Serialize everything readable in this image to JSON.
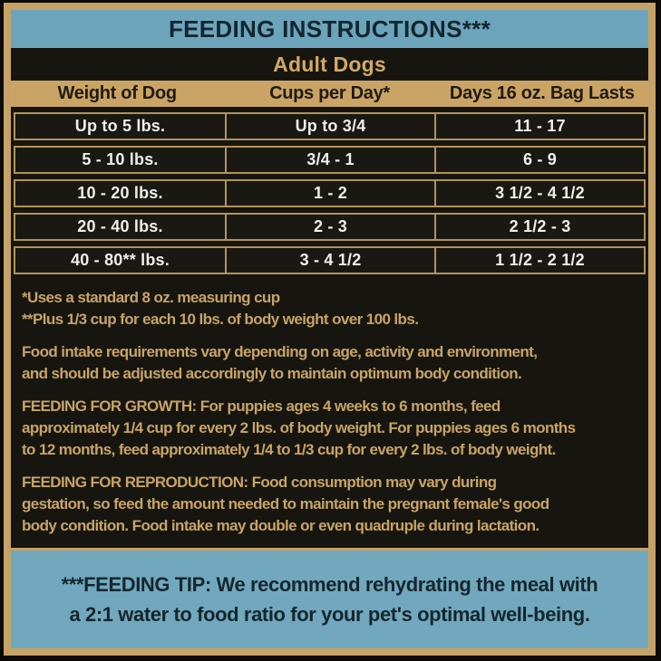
{
  "label": {
    "title": "FEEDING INSTRUCTIONS***",
    "section_header": "Adult Dogs",
    "table": {
      "columns": [
        "Weight of Dog",
        "Cups per Day*",
        "Days 16 oz. Bag Lasts"
      ],
      "rows": [
        {
          "weight": "Up to 5 lbs.",
          "cups": "Up to 3/4",
          "days": "11 - 17"
        },
        {
          "weight": "5 - 10 lbs.",
          "cups": "3/4 - 1",
          "days": "6 - 9"
        },
        {
          "weight": "10 - 20 lbs.",
          "cups": "1 - 2",
          "days": "3 1/2 - 4 1/2"
        },
        {
          "weight": "20 - 40 lbs.",
          "cups": "2 - 3",
          "days": "2 1/2 - 3"
        },
        {
          "weight": "40 - 80** lbs.",
          "cups": "3 - 4 1/2",
          "days": "1 1/2 - 2 1/2"
        }
      ]
    },
    "footnotes": [
      "*Uses a standard 8 oz. measuring cup",
      "**Plus 1/3 cup for each 10 lbs. of body weight over 100 lbs."
    ],
    "paragraphs": {
      "intake": [
        "Food intake requirements vary depending on age, activity and environment,",
        "and should be adjusted accordingly to maintain optimum body condition."
      ],
      "growth": [
        "FEEDING FOR GROWTH: For puppies ages 4 weeks to 6 months, feed",
        "approximately 1/4 cup for every 2 lbs. of body weight. For puppies ages 6 months",
        "to 12 months, feed approximately 1/4 to 1/3 cup for every 2 lbs. of body weight."
      ],
      "reproduction": [
        "FEEDING FOR REPRODUCTION: Food consumption may vary during",
        "gestation, so feed the amount needed to maintain the pregnant female's good",
        "body condition. Food intake may double or even quadruple during lactation."
      ]
    },
    "tip": [
      "***FEEDING TIP: We recommend rehydrating the meal with",
      "a 2:1 water to food ratio for your pet's optimal well-being."
    ],
    "colors": {
      "teal": "#6ca5bb",
      "tan_frame": "#c6a267",
      "tan_header_band": "#c9a464",
      "gold_text": "#c7a466",
      "table_border": "#b0935d",
      "cell_text": "#f0efec",
      "dark_background": "#17150f",
      "dark_text_on_teal": "#13262e"
    }
  }
}
